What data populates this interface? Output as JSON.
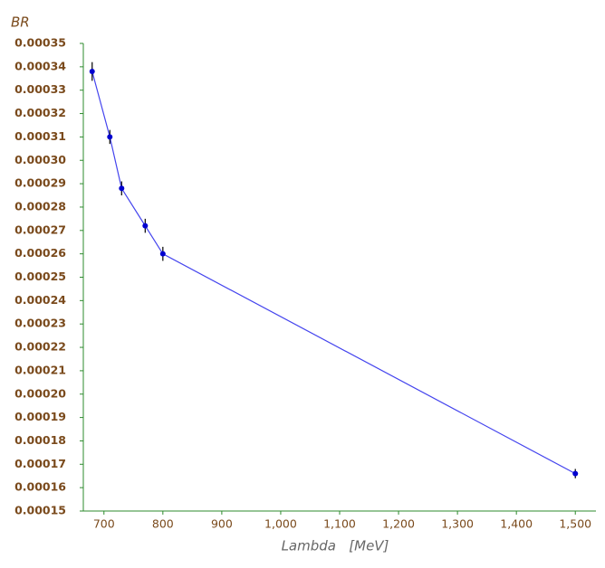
{
  "chart_data": {
    "type": "line",
    "y_label": "BR",
    "x_label": "Lambda   [MeV]",
    "x": [
      680,
      710,
      730,
      770,
      800,
      1500
    ],
    "series": [
      {
        "color": "#0000d0",
        "line_color": "#4444ee",
        "values": [
          0.000338,
          0.00031,
          0.000288,
          0.000272,
          0.00026,
          0.000166
        ],
        "errors": [
          4e-06,
          3e-06,
          3e-06,
          3e-06,
          3e-06,
          2e-06
        ]
      }
    ],
    "xlim": [
      665,
      1535
    ],
    "ylim": [
      0.00015,
      0.00035
    ],
    "xticks": [
      700,
      800,
      900,
      {
        "value": 1000,
        "label": "1,000"
      },
      {
        "value": 1100,
        "label": "1,100"
      },
      {
        "value": 1200,
        "label": "1,200"
      },
      {
        "value": 1300,
        "label": "1,300"
      },
      {
        "value": 1400,
        "label": "1,400"
      },
      {
        "value": 1500,
        "label": "1,500"
      }
    ],
    "yticks": [
      0.00015,
      0.00016,
      0.00017,
      0.00018,
      0.00019,
      {
        "value": 0.0002,
        "label": "0.00020"
      },
      0.00021,
      0.00022,
      0.00023,
      0.00024,
      0.00025,
      0.00026,
      0.00027,
      0.00028,
      0.00029,
      {
        "value": 0.0003,
        "label": "0.00030"
      },
      0.00031,
      0.00032,
      0.00033,
      0.00034,
      0.00035
    ],
    "axis_color": "#2e8b2e",
    "tick_label_color": "#7a4a1c",
    "x_label_color": "#666666"
  }
}
